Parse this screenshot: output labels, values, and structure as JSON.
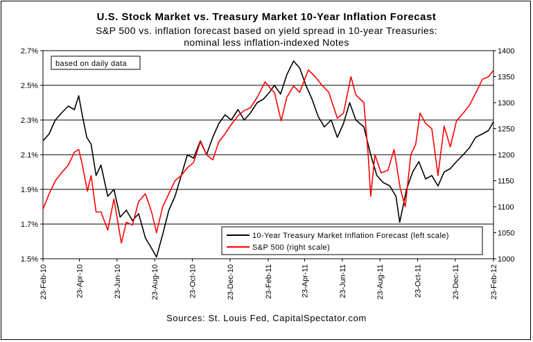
{
  "chart_data": {
    "type": "line",
    "title": "U.S. Stock Market vs. Treasury Market 10-Year Inflation Forecast",
    "subtitle_line1": "S&P 500 vs. inflation forecast based on yield spread in 10-year Treasuries:",
    "subtitle_line2": "nominal less inflation-indexed Notes",
    "annotation": "based on daily data",
    "source": "Sources: St. Louis Fed, CapitalSpectator.com",
    "left_axis": {
      "ticks": [
        "1.5%",
        "1.7%",
        "1.9%",
        "2.1%",
        "2.3%",
        "2.5%",
        "2.7%"
      ],
      "range": [
        1.5,
        2.7
      ]
    },
    "right_axis": {
      "ticks": [
        "1000",
        "1050",
        "1100",
        "1150",
        "1200",
        "1250",
        "1300",
        "1350",
        "1400"
      ],
      "range": [
        1000,
        1400
      ]
    },
    "x_ticks": [
      "23-Feb-10",
      "23-Apr-10",
      "23-Jun-10",
      "23-Aug-10",
      "23-Oct-10",
      "23-Dec-10",
      "23-Feb-11",
      "23-Apr-11",
      "23-Jun-11",
      "23-Aug-11",
      "23-Oct-11",
      "23-Dec-11",
      "23-Feb-12"
    ],
    "grid": "horizontal",
    "legend_position": "bottom-right",
    "series": [
      {
        "name": "10-Year Treasury Market Inflation Forecast (left scale)",
        "axis": "left",
        "color": "#000000",
        "points": [
          [
            "2010-02-23",
            2.18
          ],
          [
            "2010-03-05",
            2.22
          ],
          [
            "2010-03-15",
            2.3
          ],
          [
            "2010-03-25",
            2.34
          ],
          [
            "2010-04-05",
            2.38
          ],
          [
            "2010-04-15",
            2.36
          ],
          [
            "2010-04-22",
            2.44
          ],
          [
            "2010-04-27",
            2.34
          ],
          [
            "2010-05-05",
            2.2
          ],
          [
            "2010-05-12",
            2.16
          ],
          [
            "2010-05-20",
            1.98
          ],
          [
            "2010-05-28",
            2.04
          ],
          [
            "2010-06-08",
            1.86
          ],
          [
            "2010-06-18",
            1.9
          ],
          [
            "2010-06-28",
            1.74
          ],
          [
            "2010-07-08",
            1.78
          ],
          [
            "2010-07-18",
            1.72
          ],
          [
            "2010-07-28",
            1.76
          ],
          [
            "2010-08-08",
            1.62
          ],
          [
            "2010-08-18",
            1.56
          ],
          [
            "2010-08-26",
            1.51
          ],
          [
            "2010-09-05",
            1.64
          ],
          [
            "2010-09-15",
            1.78
          ],
          [
            "2010-09-25",
            1.86
          ],
          [
            "2010-10-05",
            1.98
          ],
          [
            "2010-10-15",
            2.1
          ],
          [
            "2010-10-25",
            2.08
          ],
          [
            "2010-11-05",
            2.18
          ],
          [
            "2010-11-15",
            2.1
          ],
          [
            "2010-11-25",
            2.2
          ],
          [
            "2010-12-05",
            2.28
          ],
          [
            "2010-12-15",
            2.33
          ],
          [
            "2010-12-25",
            2.3
          ],
          [
            "2011-01-05",
            2.36
          ],
          [
            "2011-01-15",
            2.3
          ],
          [
            "2011-01-25",
            2.34
          ],
          [
            "2011-02-05",
            2.4
          ],
          [
            "2011-02-15",
            2.42
          ],
          [
            "2011-02-25",
            2.46
          ],
          [
            "2011-03-05",
            2.5
          ],
          [
            "2011-03-15",
            2.45
          ],
          [
            "2011-03-25",
            2.56
          ],
          [
            "2011-04-05",
            2.64
          ],
          [
            "2011-04-15",
            2.6
          ],
          [
            "2011-04-25",
            2.5
          ],
          [
            "2011-05-05",
            2.42
          ],
          [
            "2011-05-15",
            2.32
          ],
          [
            "2011-05-25",
            2.26
          ],
          [
            "2011-06-05",
            2.3
          ],
          [
            "2011-06-15",
            2.2
          ],
          [
            "2011-06-25",
            2.28
          ],
          [
            "2011-07-05",
            2.4
          ],
          [
            "2011-07-15",
            2.3
          ],
          [
            "2011-07-28",
            2.26
          ],
          [
            "2011-08-08",
            2.1
          ],
          [
            "2011-08-18",
            1.98
          ],
          [
            "2011-08-28",
            1.94
          ],
          [
            "2011-09-08",
            1.92
          ],
          [
            "2011-09-18",
            1.86
          ],
          [
            "2011-09-24",
            1.71
          ],
          [
            "2011-10-05",
            1.9
          ],
          [
            "2011-10-15",
            2.0
          ],
          [
            "2011-10-25",
            2.06
          ],
          [
            "2011-11-05",
            1.96
          ],
          [
            "2011-11-15",
            1.98
          ],
          [
            "2011-11-25",
            1.92
          ],
          [
            "2011-12-05",
            2.0
          ],
          [
            "2011-12-15",
            2.02
          ],
          [
            "2011-12-25",
            2.06
          ],
          [
            "2012-01-05",
            2.1
          ],
          [
            "2012-01-15",
            2.14
          ],
          [
            "2012-01-25",
            2.2
          ],
          [
            "2012-02-05",
            2.22
          ],
          [
            "2012-02-15",
            2.24
          ],
          [
            "2012-02-23",
            2.29
          ]
        ]
      },
      {
        "name": "S&P 500 (right scale)",
        "axis": "right",
        "color": "#ff0000",
        "points": [
          [
            "2010-02-23",
            1095
          ],
          [
            "2010-03-05",
            1125
          ],
          [
            "2010-03-15",
            1150
          ],
          [
            "2010-03-25",
            1165
          ],
          [
            "2010-04-05",
            1180
          ],
          [
            "2010-04-15",
            1205
          ],
          [
            "2010-04-22",
            1210
          ],
          [
            "2010-04-27",
            1185
          ],
          [
            "2010-05-06",
            1130
          ],
          [
            "2010-05-12",
            1160
          ],
          [
            "2010-05-20",
            1090
          ],
          [
            "2010-05-28",
            1090
          ],
          [
            "2010-06-08",
            1055
          ],
          [
            "2010-06-18",
            1115
          ],
          [
            "2010-06-30",
            1030
          ],
          [
            "2010-07-08",
            1070
          ],
          [
            "2010-07-18",
            1065
          ],
          [
            "2010-07-28",
            1110
          ],
          [
            "2010-08-08",
            1125
          ],
          [
            "2010-08-18",
            1090
          ],
          [
            "2010-08-26",
            1050
          ],
          [
            "2010-09-05",
            1100
          ],
          [
            "2010-09-15",
            1125
          ],
          [
            "2010-09-25",
            1150
          ],
          [
            "2010-10-05",
            1160
          ],
          [
            "2010-10-15",
            1175
          ],
          [
            "2010-10-25",
            1185
          ],
          [
            "2010-11-05",
            1225
          ],
          [
            "2010-11-15",
            1200
          ],
          [
            "2010-11-25",
            1190
          ],
          [
            "2010-12-05",
            1225
          ],
          [
            "2010-12-15",
            1240
          ],
          [
            "2010-12-25",
            1258
          ],
          [
            "2011-01-05",
            1275
          ],
          [
            "2011-01-15",
            1285
          ],
          [
            "2011-01-25",
            1290
          ],
          [
            "2011-02-05",
            1310
          ],
          [
            "2011-02-18",
            1340
          ],
          [
            "2011-02-28",
            1325
          ],
          [
            "2011-03-05",
            1320
          ],
          [
            "2011-03-16",
            1265
          ],
          [
            "2011-03-25",
            1310
          ],
          [
            "2011-04-05",
            1332
          ],
          [
            "2011-04-15",
            1320
          ],
          [
            "2011-04-29",
            1363
          ],
          [
            "2011-05-10",
            1350
          ],
          [
            "2011-05-20",
            1335
          ],
          [
            "2011-06-01",
            1320
          ],
          [
            "2011-06-15",
            1270
          ],
          [
            "2011-06-25",
            1280
          ],
          [
            "2011-07-07",
            1350
          ],
          [
            "2011-07-15",
            1315
          ],
          [
            "2011-07-28",
            1300
          ],
          [
            "2011-08-04",
            1200
          ],
          [
            "2011-08-08",
            1120
          ],
          [
            "2011-08-15",
            1200
          ],
          [
            "2011-08-25",
            1165
          ],
          [
            "2011-09-05",
            1170
          ],
          [
            "2011-09-15",
            1210
          ],
          [
            "2011-09-25",
            1135
          ],
          [
            "2011-10-03",
            1100
          ],
          [
            "2011-10-12",
            1200
          ],
          [
            "2011-10-20",
            1220
          ],
          [
            "2011-10-27",
            1280
          ],
          [
            "2011-11-05",
            1260
          ],
          [
            "2011-11-15",
            1250
          ],
          [
            "2011-11-25",
            1160
          ],
          [
            "2011-12-05",
            1255
          ],
          [
            "2011-12-15",
            1215
          ],
          [
            "2011-12-25",
            1265
          ],
          [
            "2012-01-05",
            1280
          ],
          [
            "2012-01-15",
            1295
          ],
          [
            "2012-01-25",
            1318
          ],
          [
            "2012-02-05",
            1345
          ],
          [
            "2012-02-15",
            1350
          ],
          [
            "2012-02-23",
            1362
          ]
        ]
      }
    ]
  }
}
